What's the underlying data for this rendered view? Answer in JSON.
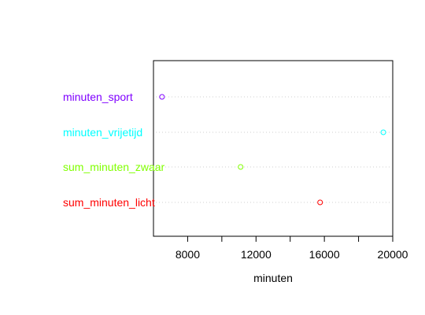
{
  "chart_data": {
    "type": "scatter",
    "title": "",
    "xlabel": "minuten",
    "ylabel": "",
    "xlim": [
      6000,
      20000
    ],
    "x_ticks": [
      {
        "value": 8000,
        "label": "8000"
      },
      {
        "value": 10000,
        "label": ""
      },
      {
        "value": 12000,
        "label": "12000"
      },
      {
        "value": 14000,
        "label": ""
      },
      {
        "value": 16000,
        "label": "16000"
      },
      {
        "value": 18000,
        "label": ""
      },
      {
        "value": 20000,
        "label": "20000"
      }
    ],
    "grid": "dotted horizontal guide lines per category",
    "points": [
      {
        "category": "minuten_sport",
        "value": 6500,
        "color": "#7f00ff"
      },
      {
        "category": "minuten_vrijetijd",
        "value": 19450,
        "color": "#00ffff"
      },
      {
        "category": "sum_minuten_zwaar",
        "value": 11100,
        "color": "#80ff00"
      },
      {
        "category": "sum_minuten_licht",
        "value": 15750,
        "color": "#ff0000"
      }
    ]
  }
}
